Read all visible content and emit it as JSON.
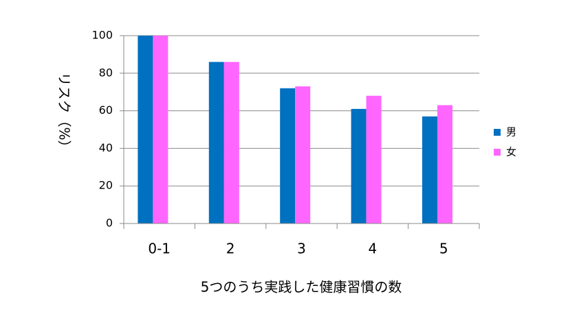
{
  "chart_data": {
    "type": "bar",
    "categories": [
      "0-1",
      "2",
      "3",
      "4",
      "5"
    ],
    "series": [
      {
        "name": "男",
        "color": "#0070c0",
        "values": [
          100,
          86,
          72,
          61,
          57
        ]
      },
      {
        "name": "女",
        "color": "#ff66ff",
        "values": [
          100,
          86,
          73,
          68,
          63
        ]
      }
    ],
    "ylabel": "リスク（%）",
    "xlabel": "5つのうち実践した健康習慣の数",
    "ylim": [
      0,
      100
    ],
    "yticks": [
      0,
      20,
      40,
      60,
      80,
      100
    ],
    "grid": true,
    "legend": "right"
  }
}
